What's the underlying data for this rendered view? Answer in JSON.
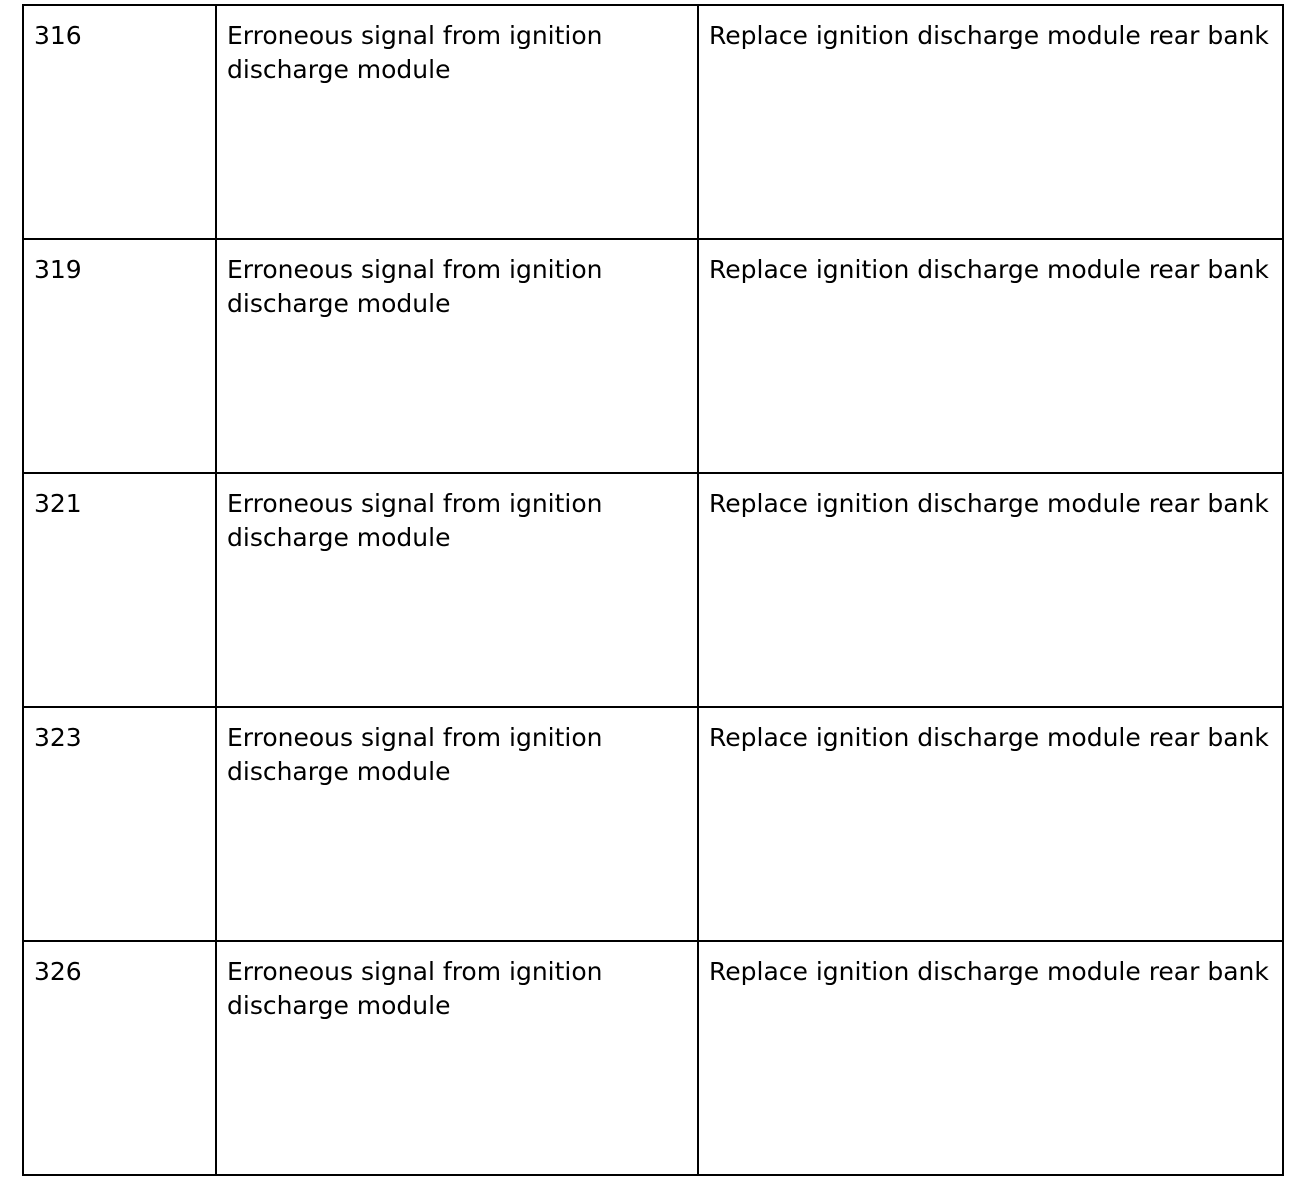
{
  "table": {
    "rows": [
      {
        "code": "316",
        "description": "Erroneous signal from ignition discharge module",
        "action": "Replace ignition discharge module rear bank"
      },
      {
        "code": "319",
        "description": "Erroneous signal from ignition discharge module",
        "action": "Replace ignition discharge module rear bank"
      },
      {
        "code": "321",
        "description": "Erroneous signal from ignition discharge module",
        "action": "Replace ignition discharge module rear bank"
      },
      {
        "code": "323",
        "description": "Erroneous signal from ignition discharge module",
        "action": "Replace ignition discharge module rear bank"
      },
      {
        "code": "326",
        "description": "Erroneous signal from ignition discharge module",
        "action": "Replace ignition discharge module rear bank"
      }
    ]
  }
}
